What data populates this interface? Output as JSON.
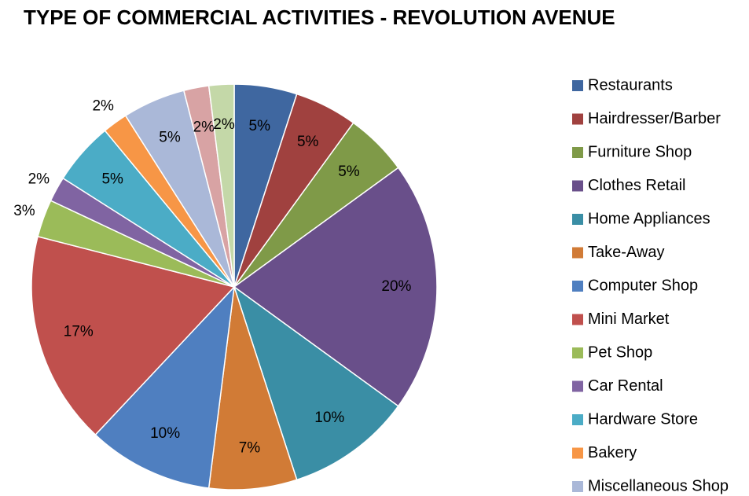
{
  "chart_data": {
    "type": "pie",
    "title": "TYPE OF COMMERCIAL ACTIVITIES - REVOLUTION AVENUE",
    "categories": [
      "Restaurants",
      "Hairdresser/Barber",
      "Furniture Shop",
      "Clothes Retail",
      "Home Appliances",
      "Take-Away",
      "Computer Shop",
      "Mini Market",
      "Pet Shop",
      "Car Rental",
      "Hardware Store",
      "Bakery",
      "Miscellaneous Shop",
      null,
      null
    ],
    "values": [
      5,
      5,
      5,
      20,
      10,
      7,
      10,
      17,
      3,
      2,
      5,
      2,
      5,
      2,
      2
    ],
    "value_labels": [
      "5%",
      "5%",
      "5%",
      "20%",
      "10%",
      "7%",
      "10%",
      "17%",
      "3%",
      "2%",
      "5%",
      "2%",
      "5%",
      "2%",
      "2%"
    ],
    "colors": [
      "#3f67a0",
      "#a0413f",
      "#7f9a48",
      "#694f8a",
      "#3a8ea5",
      "#d17b36",
      "#4f7fc0",
      "#c0504d",
      "#9bbb59",
      "#8064a2",
      "#4bacc6",
      "#f79646",
      "#aab8d8",
      "#d8a3a4",
      "#c4d8a8"
    ],
    "legend": "right"
  }
}
